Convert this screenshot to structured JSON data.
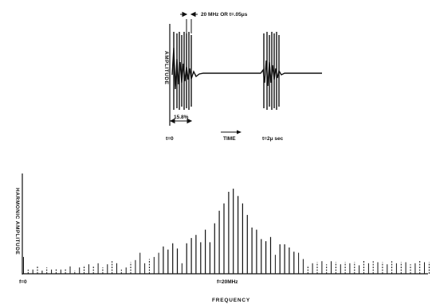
{
  "time_plot": {
    "ylabel": "AMPLITUDE",
    "period_label": "20 MHz OR t=.05μs",
    "duty_label": "15.8%",
    "t0_label": "t=0",
    "time_label": "TIME",
    "t2_label": "t=2μ sec"
  },
  "spectrum_plot": {
    "ylabel": "HARMONIC AMPLITUDE",
    "f0_label": "f=0",
    "fc_label": "f=20MHz",
    "xlabel": "FREQUENCY"
  },
  "chart_data": {
    "type": "bar",
    "x": [
      -43,
      -42,
      -41,
      -40,
      -39,
      -38,
      -37,
      -36,
      -35,
      -34,
      -33,
      -32,
      -31,
      -30,
      -29,
      -28,
      -27,
      -26,
      -25,
      -24,
      -23,
      -22,
      -21,
      -20,
      -19,
      -18,
      -17,
      -16,
      -15,
      -14,
      -13,
      -12,
      -11,
      -10,
      -9,
      -8,
      -7,
      -6,
      -5,
      -4,
      -3,
      -2,
      -1,
      0,
      1,
      2,
      3,
      4,
      5,
      6,
      7,
      8,
      9,
      10,
      11,
      12,
      13,
      14,
      15,
      16,
      17,
      18,
      19,
      20,
      21,
      22,
      23,
      24,
      25,
      26,
      27,
      28,
      29,
      30,
      31,
      32,
      33,
      34,
      35,
      36,
      37,
      38,
      39,
      40,
      41,
      42,
      43,
      44,
      45,
      46,
      47,
      48,
      49,
      50,
      51,
      52,
      53,
      54,
      55,
      56,
      57,
      58,
      59,
      60,
      61,
      62
    ],
    "values": [
      0.16,
      0.04,
      0.04,
      0.07,
      0.03,
      0.06,
      0.04,
      0.05,
      0.04,
      0.05,
      0.07,
      0.03,
      0.06,
      0.08,
      0.09,
      0.07,
      0.1,
      0.06,
      0.09,
      0.12,
      0.1,
      0.04,
      0.06,
      0.11,
      0.13,
      0.2,
      0.1,
      0.14,
      0.16,
      0.2,
      0.26,
      0.23,
      0.29,
      0.24,
      0.1,
      0.29,
      0.34,
      0.37,
      0.3,
      0.42,
      0.3,
      0.48,
      0.6,
      0.67,
      0.78,
      0.81,
      0.74,
      0.67,
      0.56,
      0.44,
      0.42,
      0.33,
      0.31,
      0.35,
      0.18,
      0.28,
      0.28,
      0.25,
      0.21,
      0.2,
      0.14,
      0.08,
      0.1,
      0.11,
      0.12,
      0.09,
      0.12,
      0.11,
      0.09,
      0.11,
      0.1,
      0.11,
      0.08,
      0.13,
      0.1,
      0.12,
      0.11,
      0.11,
      0.09,
      0.12,
      0.1,
      0.11,
      0.11,
      0.09,
      0.1,
      0.13,
      0.11,
      0.11,
      0.13,
      0.09,
      0.11,
      0.09,
      0.09,
      0.1,
      0.09,
      0.06,
      0.08,
      0.07,
      0.09,
      0.1,
      0.1,
      0.11,
      0.1,
      0.11,
      0.1,
      0.07
    ]
  }
}
